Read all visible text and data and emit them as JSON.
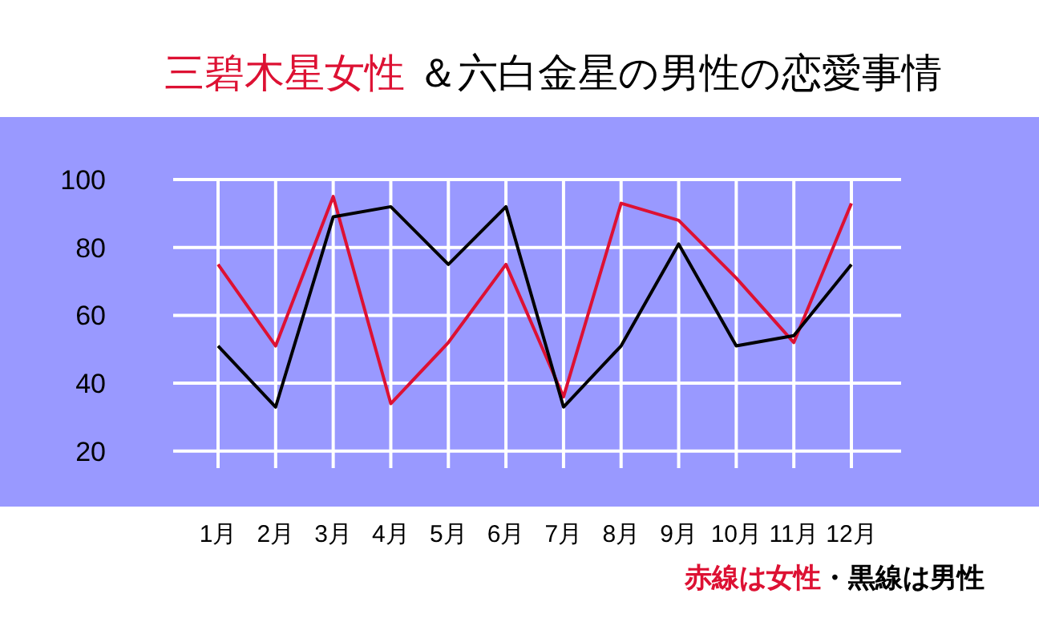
{
  "chart_data": {
    "type": "line",
    "title": "三碧木星女性",
    "subtitle": "＆六白金星の男性の恋愛事情",
    "categories": [
      "1月",
      "2月",
      "3月",
      "4月",
      "5月",
      "6月",
      "7月",
      "8月",
      "9月",
      "10月",
      "11月",
      "12月"
    ],
    "series": [
      {
        "color": "#dd1133",
        "values": [
          75,
          51,
          95,
          34,
          52,
          75,
          36,
          93,
          88,
          71,
          52,
          93
        ]
      },
      {
        "color": "#000000",
        "values": [
          51,
          33,
          89,
          92,
          75,
          92,
          33,
          51,
          81,
          51,
          54,
          75
        ]
      }
    ],
    "ylim": [
      15,
      100
    ],
    "yticks": [
      20,
      40,
      60,
      80,
      100
    ],
    "grid": true,
    "marker": "none",
    "line_style": "solid",
    "annotations": [
      "赤線は女性",
      "・黒線は男性"
    ]
  }
}
